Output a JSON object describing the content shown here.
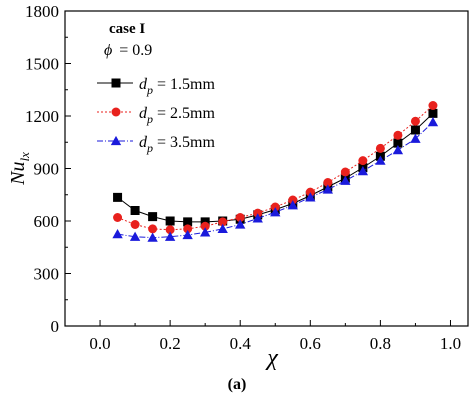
{
  "chart_data": {
    "type": "line",
    "caption": "(a)",
    "annotations": {
      "case_label": "case I",
      "phi_symbol": "ϕ",
      "phi_value": "= 0.9"
    },
    "xlabel": "χ",
    "ylabel_main": "Nu",
    "ylabel_sub": "lx",
    "xlim": [
      -0.1,
      1.05
    ],
    "ylim": [
      0,
      1800
    ],
    "x_ticks": [
      0.0,
      0.2,
      0.4,
      0.6,
      0.8,
      1.0
    ],
    "x_tick_labels": [
      "0.0",
      "0.2",
      "0.4",
      "0.6",
      "0.8",
      "1.0"
    ],
    "y_ticks": [
      0,
      300,
      600,
      900,
      1200,
      1500,
      1800
    ],
    "y_tick_labels": [
      "0",
      "300",
      "600",
      "900",
      "1200",
      "1500",
      "1800"
    ],
    "grid": false,
    "legend_position": "top-left",
    "legend_symbol_main": "d",
    "legend_symbol_sub": "p",
    "x": [
      0.05,
      0.1,
      0.15,
      0.2,
      0.25,
      0.3,
      0.35,
      0.4,
      0.45,
      0.5,
      0.55,
      0.6,
      0.65,
      0.7,
      0.75,
      0.8,
      0.85,
      0.9,
      0.95
    ],
    "series": [
      {
        "legend_value": "= 1.5mm",
        "color": "#000000",
        "marker": "square",
        "line_style": "solid",
        "values": [
          735,
          660,
          625,
          600,
          595,
          595,
          600,
          610,
          635,
          665,
          700,
          745,
          795,
          845,
          905,
          970,
          1045,
          1120,
          1215
        ]
      },
      {
        "legend_value": "= 2.5mm",
        "color": "#e8211d",
        "marker": "circle",
        "line_style": "dotted",
        "values": [
          620,
          580,
          555,
          550,
          555,
          570,
          595,
          620,
          645,
          680,
          720,
          765,
          820,
          880,
          945,
          1015,
          1090,
          1170,
          1260
        ]
      },
      {
        "legend_value": "= 3.5mm",
        "color": "#1a1adb",
        "marker": "triangle",
        "line_style": "dashdot",
        "values": [
          525,
          510,
          505,
          510,
          520,
          535,
          555,
          580,
          615,
          650,
          690,
          735,
          780,
          830,
          885,
          945,
          1005,
          1070,
          1165
        ]
      }
    ]
  }
}
